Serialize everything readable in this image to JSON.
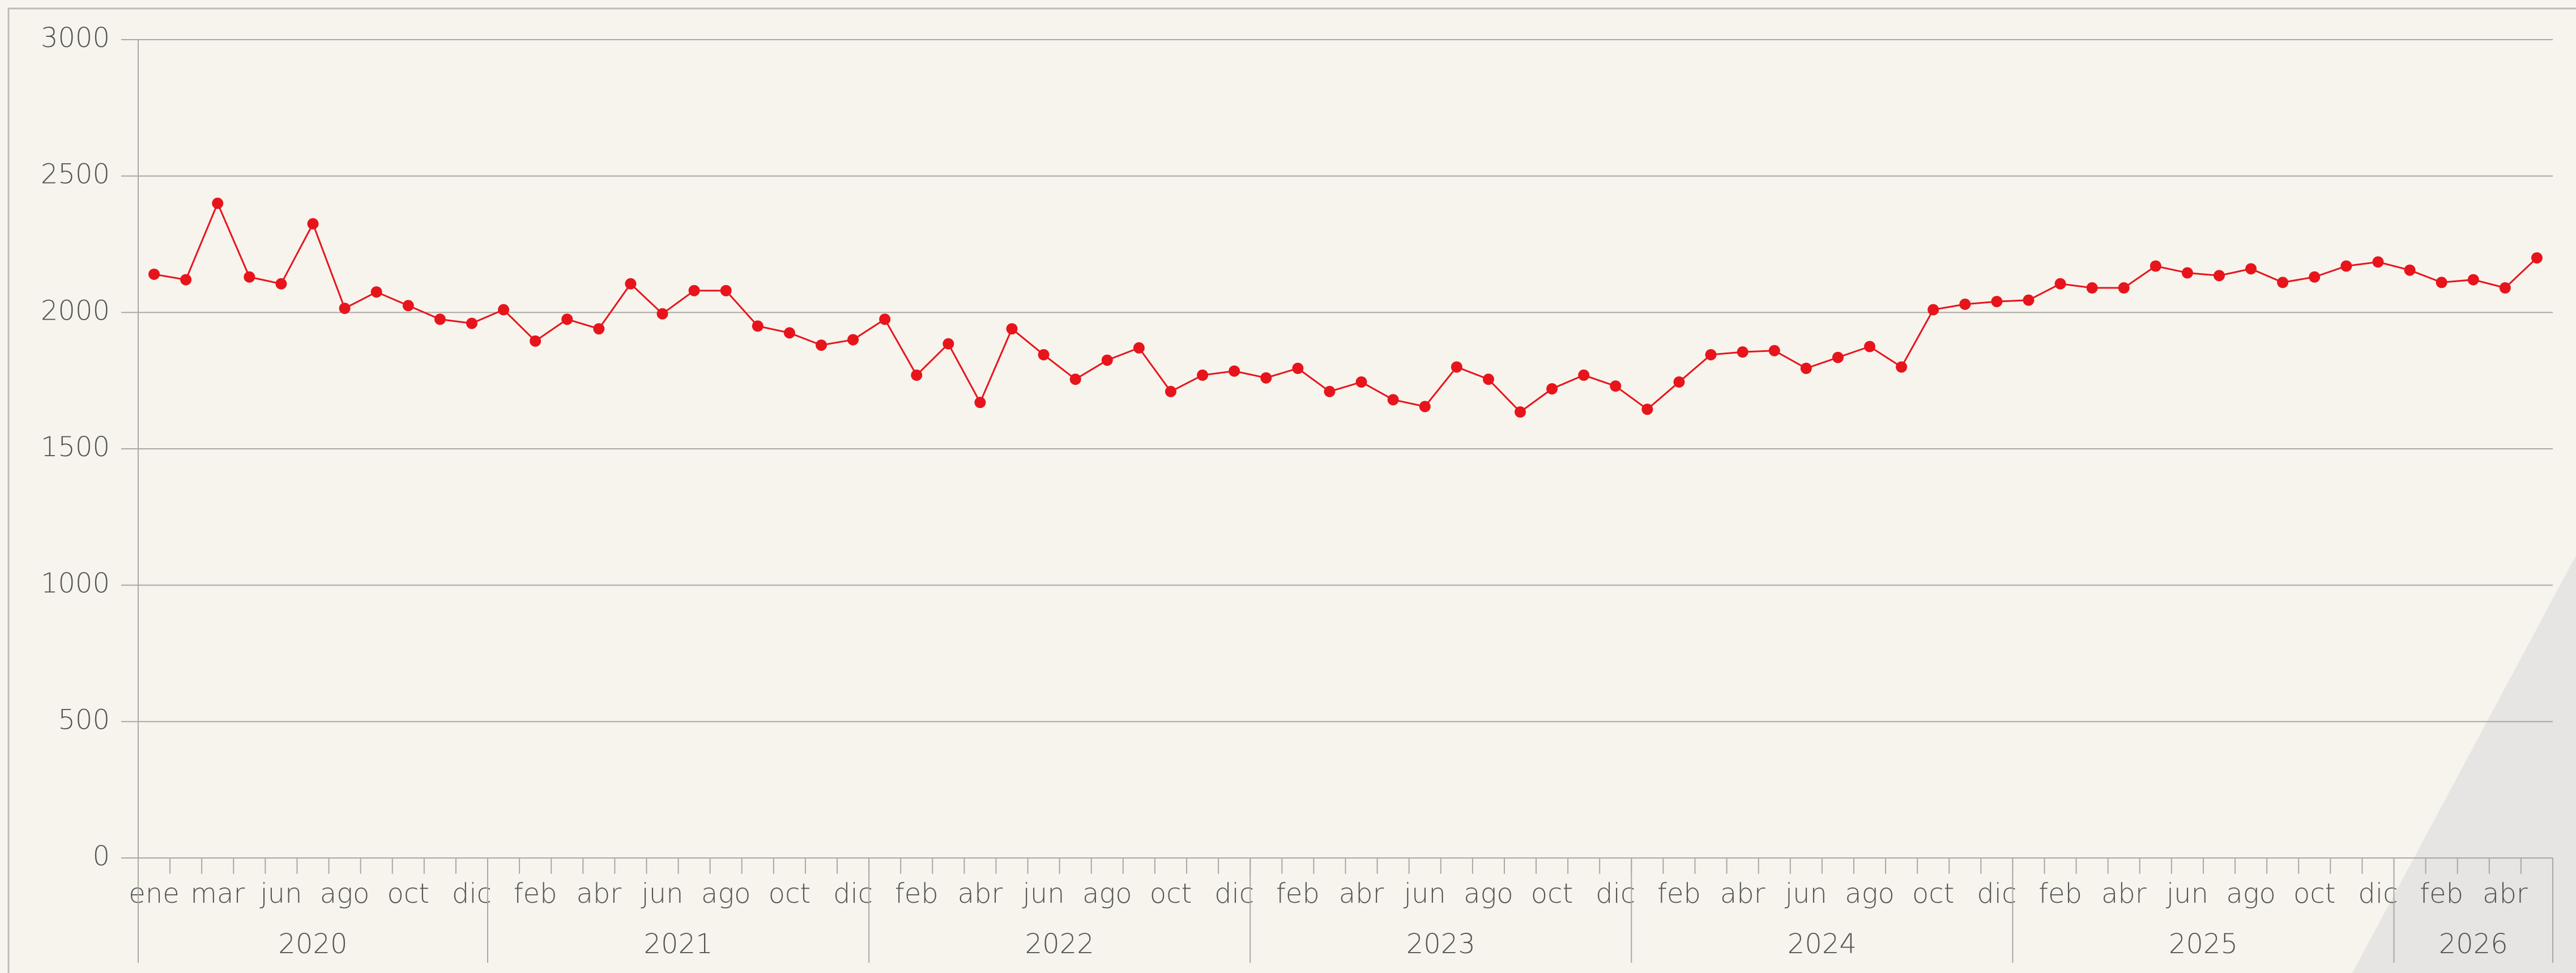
{
  "chart_data": {
    "type": "line",
    "categories": [
      "ene",
      null,
      "mar",
      null,
      "jun",
      null,
      "ago",
      null,
      "oct",
      null,
      "dic",
      null,
      "feb",
      null,
      "abr",
      null,
      "jun",
      null,
      "ago",
      null,
      "oct",
      null,
      "dic",
      null,
      "feb",
      null,
      "abr",
      null,
      "jun",
      null,
      "ago",
      null,
      "oct",
      null,
      "dic",
      null,
      "feb",
      null,
      "abr",
      null,
      "jun",
      null,
      "ago",
      null,
      "oct",
      null,
      "dic",
      null,
      "feb",
      null,
      "abr",
      null,
      "jun",
      null,
      "ago",
      null,
      "oct",
      null,
      "dic",
      null,
      "feb",
      null,
      "abr",
      null,
      "jun",
      null,
      "ago",
      null,
      "oct",
      null,
      "dic",
      null,
      "feb",
      null,
      "abr",
      null
    ],
    "year_groups": [
      {
        "label": "2020",
        "months": 11
      },
      {
        "label": "2021",
        "months": 12
      },
      {
        "label": "2022",
        "months": 12
      },
      {
        "label": "2023",
        "months": 12
      },
      {
        "label": "2024",
        "months": 12
      },
      {
        "label": "2025",
        "months": 12
      },
      {
        "label": "2026",
        "months": 5
      }
    ],
    "series": [
      {
        "color": "#e8141b",
        "values": [
          2140,
          2120,
          2400,
          2130,
          2105,
          2325,
          2015,
          2075,
          2025,
          1975,
          1960,
          2010,
          1895,
          1975,
          1940,
          2105,
          1995,
          2080,
          2080,
          1950,
          1925,
          1880,
          1900,
          1975,
          1770,
          1885,
          1670,
          1940,
          1845,
          1755,
          1825,
          1870,
          1710,
          1770,
          1785,
          1760,
          1795,
          1710,
          1745,
          1680,
          1655,
          1800,
          1755,
          1635,
          1720,
          1770,
          1730,
          1645,
          1745,
          1845,
          1855,
          1860,
          1795,
          1835,
          1875,
          1800,
          2010,
          2030,
          2040,
          2045,
          2105,
          2090,
          2090,
          2170,
          2145,
          2135,
          2160,
          2110,
          2130,
          2170,
          2185,
          2155,
          2110,
          2120,
          2090,
          2200
        ]
      }
    ],
    "ylim": [
      0,
      3000
    ],
    "yticks": [
      0,
      500,
      1000,
      1500,
      2000,
      2500,
      3000
    ],
    "grid": true
  }
}
